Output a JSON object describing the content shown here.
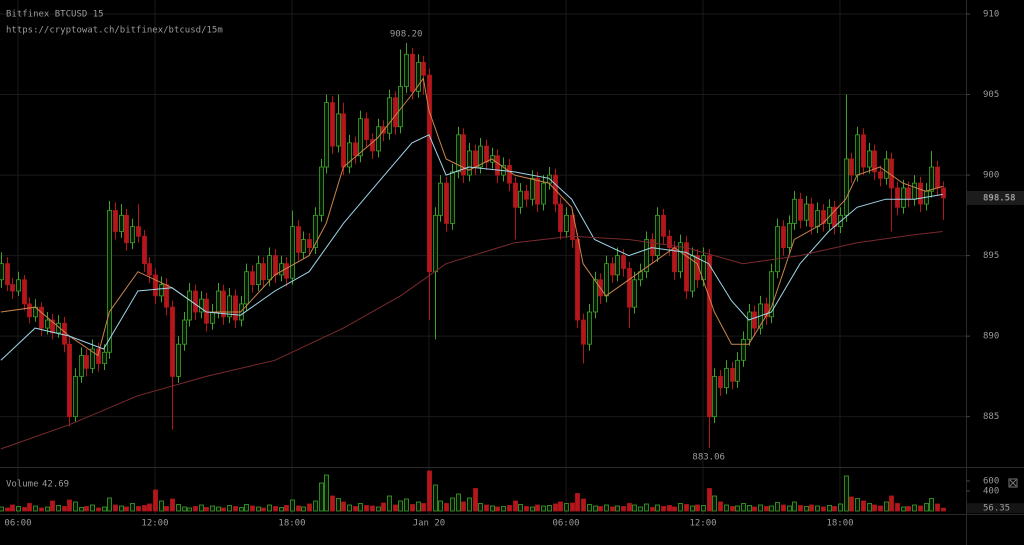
{
  "chart_data": {
    "type": "candlestick",
    "title": "Bitfinex BTCUSD 15",
    "subtitle": "https://cryptowat.ch/bitfinex/btcusd/15m",
    "up_color": "#3fa52a",
    "down_color": "#b3161b",
    "xlim": [
      -0.15,
      168.9
    ],
    "ylim": [
      882.0,
      910.87
    ],
    "yticks": [
      885,
      890,
      895,
      900,
      905,
      910
    ],
    "xticks": [
      {
        "value": 3,
        "label": "06:00"
      },
      {
        "value": 27,
        "label": "12:00"
      },
      {
        "value": 51,
        "label": "18:00"
      },
      {
        "value": 75,
        "label": "Jan 20"
      },
      {
        "value": 99,
        "label": "06:00"
      },
      {
        "value": 123,
        "label": "12:00"
      },
      {
        "value": 147,
        "label": "18:00"
      }
    ],
    "grid": true,
    "last_price": 898.58,
    "annotations": [
      {
        "x": 71,
        "value": 908.2,
        "label": "908.20",
        "side": "above"
      },
      {
        "x": 124,
        "value": 883.06,
        "side": "below"
      }
    ],
    "ohlc": [
      [
        893.5,
        895.2,
        893.0,
        894.5
      ],
      [
        894.5,
        894.9,
        892.8,
        893.2
      ],
      [
        893.2,
        893.6,
        892.3,
        892.8
      ],
      [
        892.8,
        894.0,
        892.5,
        893.5
      ],
      [
        893.5,
        893.8,
        891.6,
        892.0
      ],
      [
        892.0,
        892.4,
        890.8,
        891.2
      ],
      [
        891.2,
        892.3,
        890.9,
        891.8
      ],
      [
        891.8,
        892.1,
        890.0,
        890.5
      ],
      [
        890.5,
        891.5,
        890.1,
        891.0
      ],
      [
        891.0,
        891.4,
        889.8,
        890.2
      ],
      [
        890.2,
        891.3,
        889.9,
        890.8
      ],
      [
        890.8,
        891.2,
        889.0,
        889.5
      ],
      [
        889.5,
        890.0,
        884.4,
        885.0
      ],
      [
        885.0,
        888.0,
        884.7,
        887.5
      ],
      [
        887.5,
        889.3,
        887.1,
        888.8
      ],
      [
        888.8,
        889.2,
        887.5,
        888.0
      ],
      [
        888.0,
        889.8,
        887.7,
        889.2
      ],
      [
        889.2,
        889.6,
        887.8,
        888.3
      ],
      [
        888.3,
        889.5,
        887.9,
        889.0
      ],
      [
        889.0,
        898.4,
        888.6,
        897.8
      ],
      [
        897.8,
        898.3,
        896.0,
        896.5
      ],
      [
        896.5,
        898.2,
        896.1,
        897.5
      ],
      [
        897.5,
        897.9,
        895.3,
        895.8
      ],
      [
        895.8,
        897.3,
        895.4,
        896.8
      ],
      [
        896.8,
        898.2,
        895.8,
        896.2
      ],
      [
        896.2,
        896.6,
        894.0,
        894.5
      ],
      [
        894.5,
        894.9,
        893.3,
        893.8
      ],
      [
        893.8,
        894.2,
        892.0,
        892.5
      ],
      [
        892.5,
        893.7,
        892.1,
        893.2
      ],
      [
        893.2,
        893.6,
        891.3,
        891.8
      ],
      [
        891.8,
        892.2,
        884.2,
        887.5
      ],
      [
        887.5,
        890.0,
        887.1,
        889.5
      ],
      [
        889.5,
        891.5,
        889.1,
        891.0
      ],
      [
        891.0,
        893.3,
        890.6,
        892.8
      ],
      [
        892.8,
        893.2,
        891.0,
        891.5
      ],
      [
        891.5,
        892.8,
        891.1,
        892.3
      ],
      [
        892.3,
        892.7,
        890.3,
        890.8
      ],
      [
        890.8,
        892.0,
        890.4,
        891.5
      ],
      [
        891.5,
        893.3,
        891.1,
        892.8
      ],
      [
        892.8,
        893.2,
        890.7,
        891.2
      ],
      [
        891.2,
        893.0,
        890.8,
        892.5
      ],
      [
        892.5,
        892.9,
        890.5,
        891.0
      ],
      [
        891.0,
        892.5,
        890.6,
        892.0
      ],
      [
        892.0,
        894.5,
        891.6,
        894.0
      ],
      [
        894.0,
        894.4,
        892.7,
        893.2
      ],
      [
        893.2,
        895.0,
        892.8,
        894.5
      ],
      [
        894.5,
        894.9,
        893.0,
        893.5
      ],
      [
        893.5,
        895.5,
        893.1,
        895.0
      ],
      [
        895.0,
        895.4,
        893.3,
        893.8
      ],
      [
        893.8,
        895.0,
        893.4,
        894.5
      ],
      [
        894.5,
        894.9,
        893.1,
        893.6
      ],
      [
        893.6,
        897.8,
        893.2,
        896.8
      ],
      [
        896.8,
        897.2,
        894.7,
        895.2
      ],
      [
        895.2,
        896.5,
        894.8,
        896.0
      ],
      [
        896.0,
        896.4,
        895.0,
        895.5
      ],
      [
        895.5,
        898.0,
        895.1,
        897.5
      ],
      [
        897.5,
        901.0,
        897.1,
        900.5
      ],
      [
        900.5,
        905.0,
        900.1,
        904.5
      ],
      [
        904.5,
        904.9,
        901.3,
        901.8
      ],
      [
        901.8,
        905.0,
        901.4,
        903.8
      ],
      [
        903.8,
        904.5,
        900.0,
        900.5
      ],
      [
        900.5,
        902.5,
        900.1,
        902.0
      ],
      [
        902.0,
        902.4,
        900.7,
        901.2
      ],
      [
        901.2,
        904.0,
        900.8,
        903.5
      ],
      [
        903.5,
        903.9,
        901.7,
        902.2
      ],
      [
        902.2,
        902.6,
        901.0,
        901.5
      ],
      [
        901.5,
        903.5,
        901.1,
        903.0
      ],
      [
        903.0,
        903.4,
        902.1,
        902.6
      ],
      [
        902.6,
        905.3,
        902.2,
        904.8
      ],
      [
        904.8,
        905.2,
        902.5,
        903.0
      ],
      [
        903.0,
        907.8,
        902.6,
        905.5
      ],
      [
        905.5,
        908.2,
        905.1,
        907.5
      ],
      [
        907.5,
        907.9,
        904.7,
        905.2
      ],
      [
        905.2,
        907.5,
        904.8,
        907.0
      ],
      [
        907.0,
        907.4,
        905.0,
        906.2
      ],
      [
        906.2,
        906.6,
        891.0,
        894.0
      ],
      [
        894.0,
        898.0,
        889.8,
        897.5
      ],
      [
        897.5,
        900.0,
        897.1,
        899.5
      ],
      [
        899.5,
        899.9,
        896.5,
        897.0
      ],
      [
        897.0,
        900.7,
        896.6,
        900.2
      ],
      [
        900.2,
        903.0,
        899.8,
        902.5
      ],
      [
        902.5,
        902.9,
        899.5,
        900.0
      ],
      [
        900.0,
        902.0,
        899.6,
        901.5
      ],
      [
        901.5,
        901.9,
        900.0,
        900.5
      ],
      [
        900.5,
        902.3,
        900.1,
        901.8
      ],
      [
        901.8,
        902.2,
        900.3,
        900.8
      ],
      [
        900.8,
        901.7,
        900.4,
        901.2
      ],
      [
        901.2,
        901.6,
        899.5,
        900.0
      ],
      [
        900.0,
        901.1,
        899.6,
        900.6
      ],
      [
        900.6,
        901.0,
        899.0,
        899.5
      ],
      [
        899.5,
        899.9,
        896.0,
        898.0
      ],
      [
        898.0,
        899.5,
        897.6,
        899.0
      ],
      [
        899.0,
        899.4,
        898.0,
        898.5
      ],
      [
        898.5,
        900.3,
        898.1,
        899.8
      ],
      [
        899.8,
        900.2,
        897.7,
        898.2
      ],
      [
        898.2,
        900.0,
        897.8,
        899.5
      ],
      [
        899.5,
        900.5,
        899.1,
        900.0
      ],
      [
        900.0,
        900.4,
        897.7,
        898.2
      ],
      [
        898.2,
        898.6,
        896.0,
        896.5
      ],
      [
        896.5,
        898.0,
        896.1,
        897.5
      ],
      [
        897.5,
        897.9,
        895.5,
        896.0
      ],
      [
        896.0,
        896.4,
        890.5,
        891.0
      ],
      [
        891.0,
        891.4,
        888.3,
        889.5
      ],
      [
        889.5,
        892.0,
        889.1,
        891.5
      ],
      [
        891.5,
        894.0,
        891.1,
        893.5
      ],
      [
        893.5,
        893.9,
        892.0,
        892.5
      ],
      [
        892.5,
        895.0,
        892.1,
        894.5
      ],
      [
        894.5,
        894.9,
        893.3,
        893.8
      ],
      [
        893.8,
        895.5,
        893.4,
        895.0
      ],
      [
        895.0,
        895.4,
        893.7,
        894.2
      ],
      [
        894.2,
        894.6,
        890.5,
        891.8
      ],
      [
        891.8,
        894.0,
        891.4,
        893.5
      ],
      [
        893.5,
        894.5,
        893.1,
        894.0
      ],
      [
        894.0,
        896.5,
        893.6,
        896.0
      ],
      [
        896.0,
        896.4,
        894.5,
        895.0
      ],
      [
        895.0,
        898.0,
        894.6,
        897.5
      ],
      [
        897.5,
        897.9,
        895.7,
        896.2
      ],
      [
        896.2,
        896.6,
        895.0,
        895.5
      ],
      [
        895.5,
        895.9,
        893.5,
        894.0
      ],
      [
        894.0,
        896.3,
        893.6,
        895.8
      ],
      [
        895.8,
        896.2,
        892.3,
        892.8
      ],
      [
        892.8,
        895.5,
        892.4,
        895.0
      ],
      [
        895.0,
        895.4,
        893.0,
        893.5
      ],
      [
        893.5,
        895.5,
        893.1,
        895.0
      ],
      [
        895.0,
        895.4,
        883.06,
        885.0
      ],
      [
        885.0,
        888.0,
        884.6,
        887.5
      ],
      [
        887.5,
        887.9,
        886.3,
        886.8
      ],
      [
        886.8,
        888.5,
        886.4,
        888.0
      ],
      [
        888.0,
        888.4,
        886.7,
        887.2
      ],
      [
        887.2,
        889.0,
        886.8,
        888.5
      ],
      [
        888.5,
        890.3,
        888.1,
        889.8
      ],
      [
        889.8,
        892.0,
        889.4,
        891.5
      ],
      [
        891.5,
        891.9,
        890.0,
        890.5
      ],
      [
        890.5,
        892.5,
        890.1,
        892.0
      ],
      [
        892.0,
        892.4,
        890.7,
        891.2
      ],
      [
        891.2,
        894.5,
        890.8,
        894.0
      ],
      [
        894.0,
        897.3,
        893.6,
        896.8
      ],
      [
        896.8,
        897.2,
        895.0,
        895.5
      ],
      [
        895.5,
        897.5,
        895.1,
        897.0
      ],
      [
        897.0,
        899.0,
        896.6,
        898.5
      ],
      [
        898.5,
        898.9,
        896.7,
        897.2
      ],
      [
        897.2,
        898.7,
        896.8,
        898.2
      ],
      [
        898.2,
        898.6,
        896.3,
        896.8
      ],
      [
        896.8,
        898.3,
        896.4,
        897.8
      ],
      [
        897.8,
        898.2,
        896.5,
        897.0
      ],
      [
        897.0,
        898.5,
        896.6,
        898.0
      ],
      [
        898.0,
        898.4,
        896.3,
        896.8
      ],
      [
        896.8,
        898.0,
        896.4,
        897.5
      ],
      [
        897.5,
        905.0,
        897.1,
        901.0
      ],
      [
        901.0,
        901.4,
        899.5,
        900.0
      ],
      [
        900.0,
        903.0,
        899.6,
        902.5
      ],
      [
        902.5,
        902.9,
        900.0,
        900.5
      ],
      [
        900.5,
        902.0,
        900.1,
        901.5
      ],
      [
        901.5,
        901.9,
        899.7,
        900.2
      ],
      [
        900.2,
        900.6,
        899.3,
        899.8
      ],
      [
        899.8,
        901.5,
        899.4,
        901.0
      ],
      [
        901.0,
        901.4,
        896.5,
        899.2
      ],
      [
        899.2,
        899.6,
        897.5,
        898.0
      ],
      [
        898.0,
        899.7,
        897.6,
        899.2
      ],
      [
        899.2,
        899.6,
        898.0,
        898.5
      ],
      [
        898.5,
        900.0,
        898.1,
        899.5
      ],
      [
        899.5,
        899.9,
        897.7,
        898.2
      ],
      [
        898.2,
        899.5,
        897.8,
        899.0
      ],
      [
        899.0,
        901.5,
        898.6,
        900.5
      ],
      [
        900.5,
        900.9,
        898.7,
        899.2
      ],
      [
        899.2,
        899.6,
        897.2,
        898.58
      ]
    ],
    "lines": [
      {
        "color": "#c9844c",
        "x": [
          0,
          6,
          12,
          17,
          19,
          24,
          30,
          36,
          42,
          48,
          54,
          57,
          60,
          66,
          72,
          74,
          75,
          78,
          82,
          86,
          90,
          96,
          100,
          102,
          106,
          110,
          114,
          118,
          122,
          125,
          128,
          131,
          135,
          139,
          144,
          148,
          150,
          154,
          158,
          162,
          165
        ],
        "values": [
          891.5,
          891.8,
          890.0,
          888.8,
          891.5,
          894.0,
          893.0,
          891.5,
          891.5,
          893.8,
          895.0,
          897.0,
          900.5,
          902.3,
          905.0,
          906.0,
          904.0,
          901.0,
          900.3,
          901.0,
          900.0,
          899.5,
          898.0,
          894.5,
          892.5,
          893.5,
          894.5,
          895.5,
          894.5,
          891.5,
          889.5,
          889.5,
          891.8,
          896.0,
          897.0,
          898.5,
          900.0,
          900.5,
          899.5,
          899.0,
          899.3
        ]
      },
      {
        "color": "#9fd4e8",
        "x": [
          0,
          6,
          12,
          18,
          24,
          30,
          36,
          42,
          48,
          54,
          60,
          66,
          72,
          75,
          78,
          82,
          90,
          96,
          100,
          104,
          110,
          114,
          120,
          124,
          128,
          131,
          135,
          140,
          145,
          150,
          155,
          160,
          165
        ],
        "values": [
          888.5,
          890.5,
          890.0,
          889.2,
          892.8,
          893.0,
          891.5,
          891.3,
          892.8,
          894.0,
          897.0,
          899.5,
          902.0,
          902.5,
          900.0,
          900.5,
          900.2,
          899.8,
          898.5,
          896.0,
          895.0,
          895.5,
          895.2,
          894.5,
          892.2,
          891.0,
          891.5,
          894.5,
          896.5,
          898.0,
          898.5,
          898.5,
          898.8
        ]
      },
      {
        "color": "#7a2a2e",
        "x": [
          0,
          12,
          24,
          36,
          48,
          60,
          70,
          78,
          90,
          100,
          110,
          120,
          130,
          140,
          150,
          160,
          165
        ],
        "values": [
          883.0,
          884.5,
          886.3,
          887.5,
          888.5,
          890.5,
          892.5,
          894.5,
          895.8,
          896.2,
          896.0,
          895.5,
          894.5,
          895.0,
          895.8,
          896.3,
          896.5
        ]
      }
    ],
    "volume_title": "Volume",
    "volume_legend_value": 42.69,
    "volume_lim": [
      0,
      820
    ],
    "volume_ticks": [
      400,
      600
    ],
    "volume": [
      80,
      60,
      120,
      90,
      70,
      150,
      100,
      60,
      80,
      200,
      110,
      90,
      220,
      180,
      70,
      90,
      120,
      60,
      80,
      260,
      120,
      100,
      80,
      150,
      90,
      110,
      140,
      420,
      200,
      90,
      240,
      130,
      80,
      60,
      90,
      120,
      70,
      100,
      80,
      60,
      110,
      90,
      70,
      130,
      100,
      80,
      60,
      120,
      90,
      70,
      110,
      220,
      100,
      80,
      140,
      200,
      560,
      720,
      300,
      250,
      180,
      120,
      90,
      150,
      110,
      100,
      80,
      160,
      300,
      120,
      200,
      240,
      130,
      180,
      150,
      800,
      520,
      200,
      150,
      260,
      340,
      180,
      260,
      450,
      150,
      120,
      100,
      80,
      90,
      110,
      200,
      130,
      90,
      80,
      120,
      100,
      110,
      140,
      180,
      150,
      160,
      350,
      240,
      130,
      100,
      90,
      120,
      80,
      100,
      90,
      150,
      120,
      80,
      140,
      70,
      120,
      90,
      110,
      80,
      150,
      130,
      100,
      120,
      110,
      450,
      300,
      180,
      120,
      90,
      100,
      150,
      110,
      80,
      120,
      90,
      100,
      170,
      120,
      100,
      180,
      110,
      90,
      120,
      100,
      80,
      110,
      90,
      140,
      700,
      280,
      250,
      200,
      150,
      120,
      100,
      180,
      300,
      150,
      80,
      90,
      120,
      100,
      150,
      250,
      140,
      56.35
    ]
  }
}
